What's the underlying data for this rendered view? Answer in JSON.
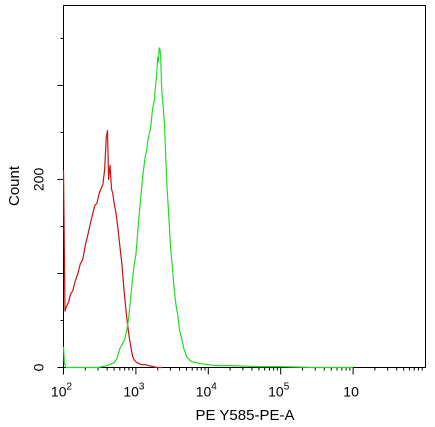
{
  "chart_data": {
    "type": "line",
    "title": "",
    "xlabel": "PE Y585-PE-A",
    "ylabel": "Count",
    "xscale": "log",
    "xlim": [
      100,
      10000000
    ],
    "ylim": [
      0,
      385
    ],
    "grid": false,
    "legend": "none",
    "x_ticks": [
      {
        "value": 100,
        "base": "10",
        "exp": "2"
      },
      {
        "value": 1000,
        "base": "10",
        "exp": "3"
      },
      {
        "value": 10000,
        "base": "10",
        "exp": "4"
      },
      {
        "value": 100000,
        "base": "10",
        "exp": "5"
      },
      {
        "value": 1000000,
        "base": "10",
        "exp": ""
      }
    ],
    "y_ticks": [
      {
        "value": 0,
        "label": "0"
      },
      {
        "value": 200,
        "label": "200"
      }
    ],
    "series": [
      {
        "color": "#cc1111",
        "x": [
          100,
          102,
          105,
          110,
          118,
          125,
          135,
          145,
          158,
          170,
          185,
          200,
          215,
          230,
          250,
          270,
          290,
          310,
          330,
          350,
          370,
          390,
          405,
          420,
          440,
          460,
          480,
          500,
          530,
          560,
          600,
          640,
          680,
          720,
          760,
          800,
          850,
          900,
          950,
          1000,
          1100,
          1200,
          1350,
          1500,
          1700,
          2000,
          2300
        ],
        "y": [
          210,
          150,
          60,
          65,
          70,
          78,
          82,
          92,
          100,
          110,
          115,
          130,
          140,
          150,
          162,
          172,
          175,
          185,
          190,
          195,
          210,
          245,
          252,
          200,
          215,
          190,
          185,
          175,
          165,
          150,
          130,
          110,
          85,
          65,
          48,
          35,
          22,
          12,
          8,
          6,
          4,
          3,
          3,
          2,
          1,
          0,
          0
        ]
      },
      {
        "color": "#22dd22",
        "x": [
          100,
          103,
          108,
          150,
          200,
          300,
          400,
          500,
          550,
          600,
          650,
          700,
          750,
          800,
          850,
          900,
          950,
          1000,
          1050,
          1100,
          1150,
          1200,
          1250,
          1300,
          1350,
          1400,
          1450,
          1500,
          1550,
          1600,
          1650,
          1700,
          1750,
          1800,
          1850,
          1900,
          1950,
          2000,
          2050,
          2100,
          2150,
          2200,
          2250,
          2300,
          2400,
          2500,
          2600,
          2700,
          2800,
          2900,
          3000,
          3200,
          3400,
          3600,
          3800,
          4000,
          4300,
          4600,
          5000,
          5500,
          6000,
          7000,
          8000,
          10000,
          13000,
          20000,
          50000,
          100000,
          300000,
          1000000
        ],
        "y": [
          22,
          5,
          0,
          0,
          0,
          0,
          2,
          5,
          10,
          20,
          25,
          30,
          40,
          55,
          75,
          95,
          110,
          120,
          140,
          160,
          175,
          190,
          205,
          215,
          225,
          230,
          240,
          245,
          250,
          255,
          265,
          275,
          280,
          285,
          295,
          305,
          315,
          330,
          325,
          340,
          338,
          330,
          305,
          290,
          275,
          255,
          220,
          190,
          170,
          150,
          130,
          105,
          80,
          65,
          55,
          40,
          30,
          20,
          12,
          8,
          6,
          5,
          4,
          3,
          2,
          2,
          1,
          1,
          0,
          0
        ]
      }
    ]
  }
}
